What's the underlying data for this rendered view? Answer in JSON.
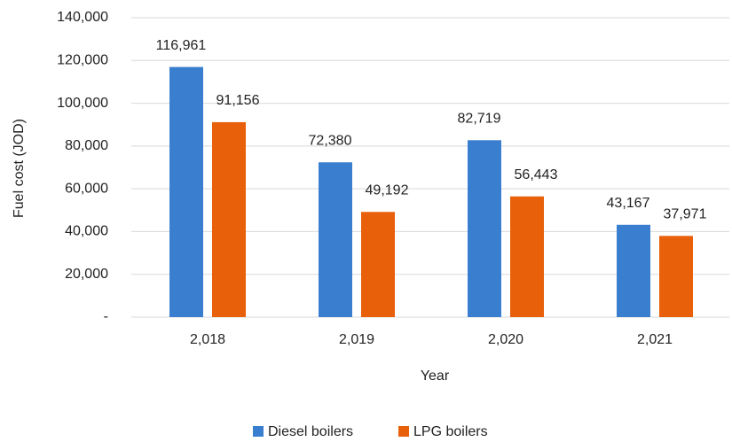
{
  "chart_data": {
    "type": "bar",
    "categories": [
      "2,018",
      "2,019",
      "2,020",
      "2,021"
    ],
    "series": [
      {
        "name": "Diesel boilers",
        "color": "#3a7fcf",
        "values": [
          116961,
          72380,
          82719,
          43167
        ],
        "value_labels": [
          "116,961",
          "72,380",
          "82,719",
          "43,167"
        ]
      },
      {
        "name": "LPG boilers",
        "color": "#e8600a",
        "values": [
          91156,
          49192,
          56443,
          37971
        ],
        "value_labels": [
          "91,156",
          "49,192",
          "56,443",
          "37,971"
        ]
      }
    ],
    "ylim": [
      0,
      140000
    ],
    "yticks": [
      {
        "value": 0,
        "label": "-"
      },
      {
        "value": 20000,
        "label": "20,000"
      },
      {
        "value": 40000,
        "label": "40,000"
      },
      {
        "value": 60000,
        "label": "60,000"
      },
      {
        "value": 80000,
        "label": "80,000"
      },
      {
        "value": 100000,
        "label": "100,000"
      },
      {
        "value": 120000,
        "label": "120,000"
      },
      {
        "value": 140000,
        "label": "140,000"
      }
    ],
    "xlabel": "Year",
    "ylabel": "Fuel cost (JOD)",
    "grid": true,
    "legend": "bottom"
  }
}
